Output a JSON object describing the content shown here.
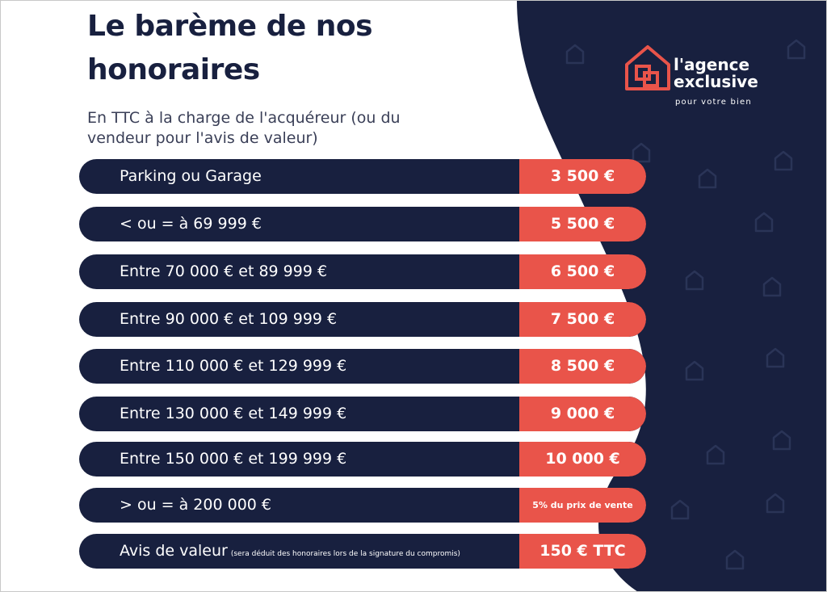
{
  "header": {
    "title": "Le barème de nos honoraires",
    "subtitle": "En TTC à la charge de l'acquéreur (ou du vendeur pour l'avis de valeur)"
  },
  "brand": {
    "name_line1": "l'agence",
    "name_line2": "exclusive",
    "tagline": "pour votre bien",
    "accent_color": "#e9544a",
    "navy_color": "#18203f"
  },
  "fees": [
    {
      "label": "Parking ou Garage",
      "note": "",
      "price": "3 500 €"
    },
    {
      "label": "< ou = à 69 999 €",
      "note": "",
      "price": "5 500 €"
    },
    {
      "label": "Entre 70 000 € et 89 999 €",
      "note": "",
      "price": "6 500 €"
    },
    {
      "label": "Entre 90 000 € et 109 999 €",
      "note": "",
      "price": "7 500 €"
    },
    {
      "label": "Entre 110 000 € et 129 999 €",
      "note": "",
      "price": "8 500 €"
    },
    {
      "label": "Entre 130 000 € et 149 999 €",
      "note": "",
      "price": "9 000 €"
    },
    {
      "label": "Entre 150 000 € et 199 999 €",
      "note": "",
      "price": "10 000 €"
    },
    {
      "label": "> ou = à 200 000 €",
      "note": "",
      "price": "5% du prix de vente"
    },
    {
      "label": "Avis de valeur",
      "note": "(sera déduit des honoraires lors de la signature du compromis)",
      "price": "150 € TTC"
    }
  ]
}
